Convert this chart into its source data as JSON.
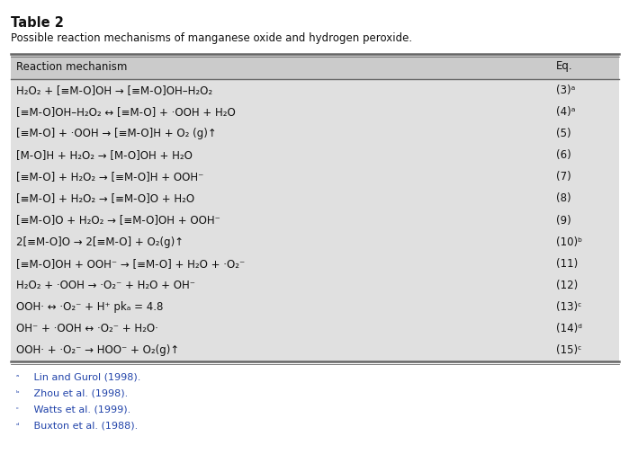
{
  "title": "Table 2",
  "subtitle": "Possible reaction mechanisms of manganese oxide and hydrogen peroxide.",
  "col_headers": [
    "Reaction mechanism",
    "Eq."
  ],
  "bg_color": "#e0e0e0",
  "header_bg": "#cbcbcb",
  "rows": [
    [
      "H₂O₂ + [≡M-O]OH → [≡M-O]OH–H₂O₂",
      "(3)ᵃ"
    ],
    [
      "[≡M-O]OH–H₂O₂ ↔ [≡M-O] + ·OOH + H₂O",
      "(4)ᵃ"
    ],
    [
      "[≡M-O] + ·OOH → [≡M-O]H + O₂ (g)↑",
      "(5)"
    ],
    [
      "[M-O]H + H₂O₂ → [M-O]OH + H₂O",
      "(6)"
    ],
    [
      "[≡M-O] + H₂O₂ → [≡M-O]H + OOH⁻",
      "(7)"
    ],
    [
      "[≡M-O] + H₂O₂ → [≡M-O]O + H₂O",
      "(8)"
    ],
    [
      "[≡M-O]O + H₂O₂ → [≡M-O]OH + OOH⁻",
      "(9)"
    ],
    [
      "2[≡M-O]O → 2[≡M-O] + O₂(g)↑",
      "(10)ᵇ"
    ],
    [
      "[≡M-O]OH + OOH⁻ → [≡M-O] + H₂O + ·O₂⁻",
      "(11)"
    ],
    [
      "H₂O₂ + ·OOH → ·O₂⁻ + H₂O + OH⁻",
      "(12)"
    ],
    [
      "OOH· ↔ ·O₂⁻ + H⁺ pkₐ = 4.8",
      "(13)ᶜ"
    ],
    [
      "OH⁻ + ·OOH ↔ ·O₂⁻ + H₂O·",
      "(14)ᵈ"
    ],
    [
      "OOH· + ·O₂⁻ → HOO⁻ + O₂(g)↑",
      "(15)ᶜ"
    ]
  ],
  "footnotes": [
    [
      "ᵃ",
      " Lin and Gurol (1998)."
    ],
    [
      "ᵇ",
      " Zhou et al. (1998)."
    ],
    [
      "ᶜ",
      " Watts et al. (1999)."
    ],
    [
      "ᵈ",
      " Buxton et al. (1988)."
    ]
  ],
  "footnote_color": "#2244aa",
  "text_color": "#111111",
  "font_size": 8.5,
  "title_font_size": 10.5,
  "subtitle_font_size": 8.5,
  "line_color": "#666666",
  "white_bg": "#ffffff"
}
